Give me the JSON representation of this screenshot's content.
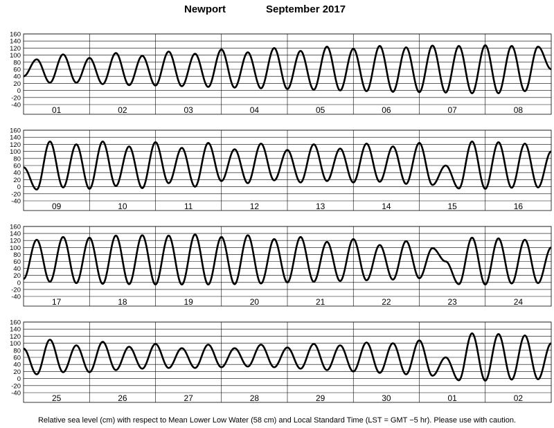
{
  "header": {
    "location": "Newport",
    "month_year": "September   2017"
  },
  "footnote": "Relative sea level (cm) with respect to Mean Lower Low Water (58 cm) and Local Standard Time (LST = GMT −5 hr). Please use with caution.",
  "colors": {
    "line": "#000000",
    "grid": "#000000",
    "background": "#ffffff"
  },
  "chart_data": [
    {
      "type": "line",
      "ylim": [
        -40,
        160
      ],
      "yticks": [
        -40,
        -20,
        0,
        20,
        40,
        60,
        80,
        100,
        120,
        140,
        160
      ],
      "day_labels": [
        "01",
        "02",
        "03",
        "04",
        "05",
        "06",
        "07",
        "08"
      ],
      "series": [
        {
          "x": [
            0.0,
            0.2,
            0.4,
            0.6,
            0.8,
            1.0,
            1.2,
            1.4,
            1.6,
            1.8,
            2.0,
            2.2,
            2.4,
            2.6,
            2.8,
            3.0,
            3.2,
            3.4,
            3.6,
            3.8,
            4.0,
            4.2,
            4.4,
            4.6,
            4.8,
            5.0,
            5.2,
            5.4,
            5.6,
            5.8,
            6.0,
            6.2,
            6.4,
            6.6,
            6.8,
            7.0,
            7.2,
            7.4,
            7.6,
            7.8,
            8.0
          ],
          "y": [
            40,
            88,
            22,
            102,
            22,
            92,
            18,
            106,
            15,
            98,
            14,
            110,
            12,
            104,
            10,
            116,
            8,
            108,
            6,
            120,
            4,
            112,
            2,
            124,
            0,
            118,
            -2,
            126,
            -4,
            122,
            -5,
            127,
            -6,
            126,
            -8,
            128,
            -8,
            126,
            -2,
            124,
            60
          ]
        }
      ]
    },
    {
      "type": "line",
      "ylim": [
        -40,
        160
      ],
      "yticks": [
        -40,
        -20,
        0,
        20,
        40,
        60,
        80,
        100,
        120,
        140,
        160
      ],
      "day_labels": [
        "09",
        "10",
        "11",
        "12",
        "13",
        "14",
        "15",
        "16"
      ],
      "series": [
        {
          "x": [
            0.0,
            0.2,
            0.4,
            0.6,
            0.8,
            1.0,
            1.2,
            1.4,
            1.6,
            1.8,
            2.0,
            2.2,
            2.4,
            2.6,
            2.8,
            3.0,
            3.2,
            3.4,
            3.6,
            3.8,
            4.0,
            4.2,
            4.4,
            4.6,
            4.8,
            5.0,
            5.2,
            5.4,
            5.6,
            5.8,
            6.0,
            6.2,
            6.4,
            6.6,
            6.8,
            7.0,
            7.2,
            7.4,
            7.6,
            7.8,
            8.0
          ],
          "y": [
            55,
            -8,
            128,
            -2,
            120,
            -6,
            128,
            2,
            114,
            -4,
            126,
            10,
            110,
            0,
            124,
            16,
            106,
            10,
            122,
            18,
            104,
            12,
            120,
            16,
            108,
            12,
            122,
            14,
            114,
            8,
            124,
            5,
            60,
            -5,
            128,
            -6,
            126,
            -3,
            122,
            -2,
            100
          ]
        }
      ]
    },
    {
      "type": "line",
      "ylim": [
        -40,
        160
      ],
      "yticks": [
        -40,
        -20,
        0,
        20,
        40,
        60,
        80,
        100,
        120,
        140,
        160
      ],
      "day_labels": [
        "17",
        "18",
        "19",
        "20",
        "21",
        "22",
        "23",
        "24"
      ],
      "series": [
        {
          "x": [
            0.0,
            0.2,
            0.4,
            0.6,
            0.8,
            1.0,
            1.2,
            1.4,
            1.6,
            1.8,
            2.0,
            2.2,
            2.4,
            2.6,
            2.8,
            3.0,
            3.2,
            3.4,
            3.6,
            3.8,
            4.0,
            4.2,
            4.4,
            4.6,
            4.8,
            5.0,
            5.2,
            5.4,
            5.6,
            5.8,
            6.0,
            6.2,
            6.4,
            6.6,
            6.8,
            7.0,
            7.2,
            7.4,
            7.6,
            7.8,
            8.0
          ],
          "y": [
            10,
            122,
            2,
            130,
            -2,
            128,
            -4,
            134,
            -5,
            135,
            -6,
            134,
            -6,
            137,
            -6,
            130,
            -5,
            135,
            -3,
            124,
            0,
            130,
            2,
            116,
            4,
            124,
            6,
            107,
            8,
            118,
            12,
            98,
            60,
            -5,
            128,
            -6,
            126,
            -3,
            122,
            -2,
            100
          ]
        }
      ]
    },
    {
      "type": "line",
      "ylim": [
        -40,
        160
      ],
      "yticks": [
        -40,
        -20,
        0,
        20,
        40,
        60,
        80,
        100,
        120,
        140,
        160
      ],
      "day_labels": [
        "25",
        "26",
        "27",
        "28",
        "29",
        "30",
        "01",
        "02"
      ],
      "series": [
        {
          "x": [
            0.0,
            0.2,
            0.4,
            0.6,
            0.8,
            1.0,
            1.2,
            1.4,
            1.6,
            1.8,
            2.0,
            2.2,
            2.4,
            2.6,
            2.8,
            3.0,
            3.2,
            3.4,
            3.6,
            3.8,
            4.0,
            4.2,
            4.4,
            4.6,
            4.8,
            5.0,
            5.2,
            5.4,
            5.6,
            5.8,
            6.0,
            6.2,
            6.4,
            6.6,
            6.8,
            7.0,
            7.2,
            7.4,
            7.6,
            7.8,
            8.0
          ],
          "y": [
            85,
            12,
            110,
            18,
            94,
            18,
            104,
            24,
            90,
            28,
            98,
            30,
            86,
            30,
            96,
            32,
            86,
            34,
            96,
            32,
            88,
            28,
            98,
            24,
            94,
            20,
            102,
            16,
            100,
            12,
            108,
            8,
            60,
            -5,
            128,
            -6,
            126,
            -3,
            122,
            -2,
            100
          ]
        }
      ]
    }
  ]
}
